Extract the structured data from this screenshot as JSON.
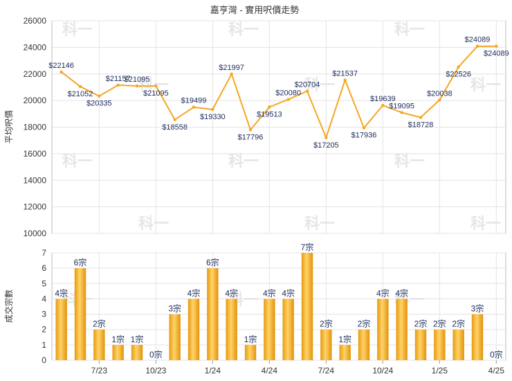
{
  "title": "嘉亨灣 - 實用呎價走勢",
  "chart_data": [
    {
      "type": "line",
      "ylabel": "平均呎價",
      "ylim": [
        10000,
        26000
      ],
      "yticks": [
        10000,
        12000,
        14000,
        16000,
        18000,
        20000,
        22000,
        24000,
        26000
      ],
      "color": "#f5a623",
      "values": [
        22146,
        21052,
        20335,
        21157,
        21095,
        21095,
        18558,
        19499,
        19330,
        21997,
        17796,
        19513,
        20080,
        20704,
        17205,
        21537,
        17936,
        19639,
        19095,
        18728,
        20038,
        22526,
        24089,
        24089
      ]
    },
    {
      "type": "bar",
      "ylabel": "成交宗數",
      "ylim": [
        0,
        7
      ],
      "yticks": [
        0,
        1,
        2,
        3,
        4,
        5,
        6,
        7
      ],
      "unit": "宗",
      "color": "#f5b01a",
      "values": [
        4,
        6,
        2,
        1,
        1,
        0,
        3,
        4,
        6,
        4,
        1,
        4,
        4,
        7,
        2,
        1,
        2,
        4,
        4,
        2,
        2,
        2,
        3,
        0
      ]
    }
  ],
  "x_ticks": [
    {
      "label": "7/23",
      "index": 2
    },
    {
      "label": "10/23",
      "index": 5
    },
    {
      "label": "1/24",
      "index": 8
    },
    {
      "label": "4/24",
      "index": 11
    },
    {
      "label": "7/24",
      "index": 14
    },
    {
      "label": "10/24",
      "index": 17
    },
    {
      "label": "1/25",
      "index": 20
    },
    {
      "label": "4/25",
      "index": 23
    }
  ],
  "watermark": "科一"
}
